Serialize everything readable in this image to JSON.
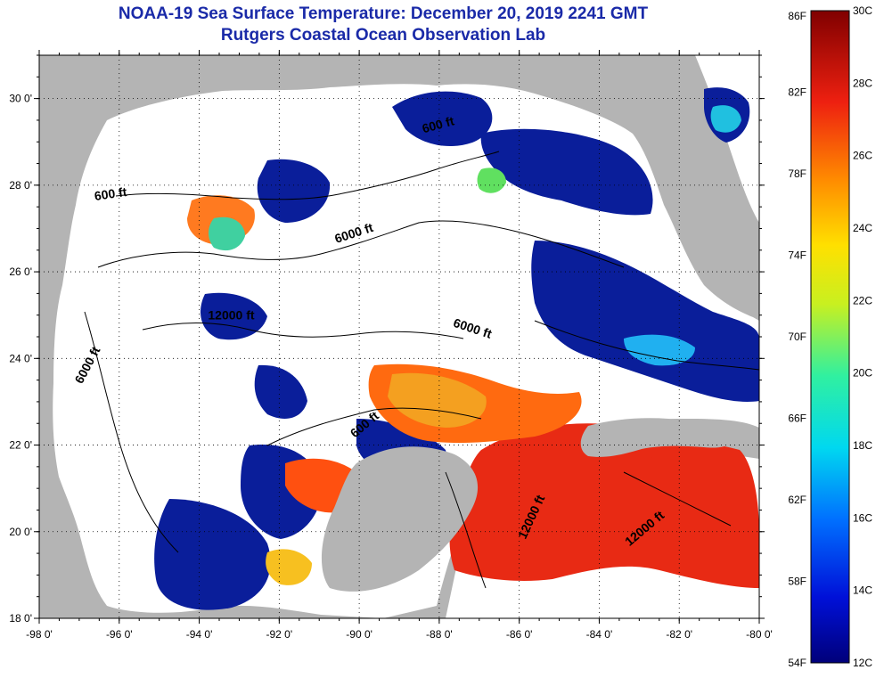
{
  "title": "NOAA-19 Sea Surface Temperature:  December 20, 2019 2241 GMT",
  "subtitle": "Rutgers Coastal Ocean Observation Lab",
  "map": {
    "lon_ticks": [
      "-98 0'",
      "-96 0'",
      "-94 0'",
      "-92 0'",
      "-90 0'",
      "-88 0'",
      "-86 0'",
      "-84 0'",
      "-82 0'",
      "-80 0'"
    ],
    "lat_ticks": [
      "30 0'",
      "28 0'",
      "26 0'",
      "24 0'",
      "22 0'",
      "20 0'",
      "18 0'"
    ],
    "lon_range": [
      -98,
      -80
    ],
    "lat_range": [
      18,
      31
    ],
    "grid": "dotted",
    "colors": {
      "land": "#b4b4b4",
      "cloud": "#ffffff",
      "cold": "#0a1e9a",
      "warm": "#e82a14"
    }
  },
  "contour_labels": [
    {
      "text": "600 ft",
      "lon": -96.2,
      "lat": 27.7,
      "rotate": -8
    },
    {
      "text": "6000 ft",
      "lon": -90.1,
      "lat": 26.8,
      "rotate": -18
    },
    {
      "text": "600 ft",
      "lon": -88.0,
      "lat": 29.3,
      "rotate": -15
    },
    {
      "text": "12000 ft",
      "lon": -93.2,
      "lat": 24.9,
      "rotate": 0
    },
    {
      "text": "6000 ft",
      "lon": -87.2,
      "lat": 24.6,
      "rotate": 18
    },
    {
      "text": "6000 ft",
      "lon": -96.7,
      "lat": 23.8,
      "rotate": -62
    },
    {
      "text": "600 ft",
      "lon": -89.8,
      "lat": 22.4,
      "rotate": -40
    },
    {
      "text": "12000 ft",
      "lon": -85.6,
      "lat": 20.3,
      "rotate": -65
    },
    {
      "text": "12000 ft",
      "lon": -82.8,
      "lat": 20.0,
      "rotate": -40
    }
  ],
  "colorbar": {
    "fahrenheit_labels": [
      "86F",
      "82F",
      "78F",
      "74F",
      "70F",
      "66F",
      "62F",
      "58F",
      "54F"
    ],
    "celsius_labels": [
      "30C",
      "28C",
      "26C",
      "24C",
      "22C",
      "20C",
      "18C",
      "16C",
      "14C",
      "12C"
    ],
    "range_c": [
      12,
      30
    ],
    "range_f": [
      54,
      86
    ]
  }
}
